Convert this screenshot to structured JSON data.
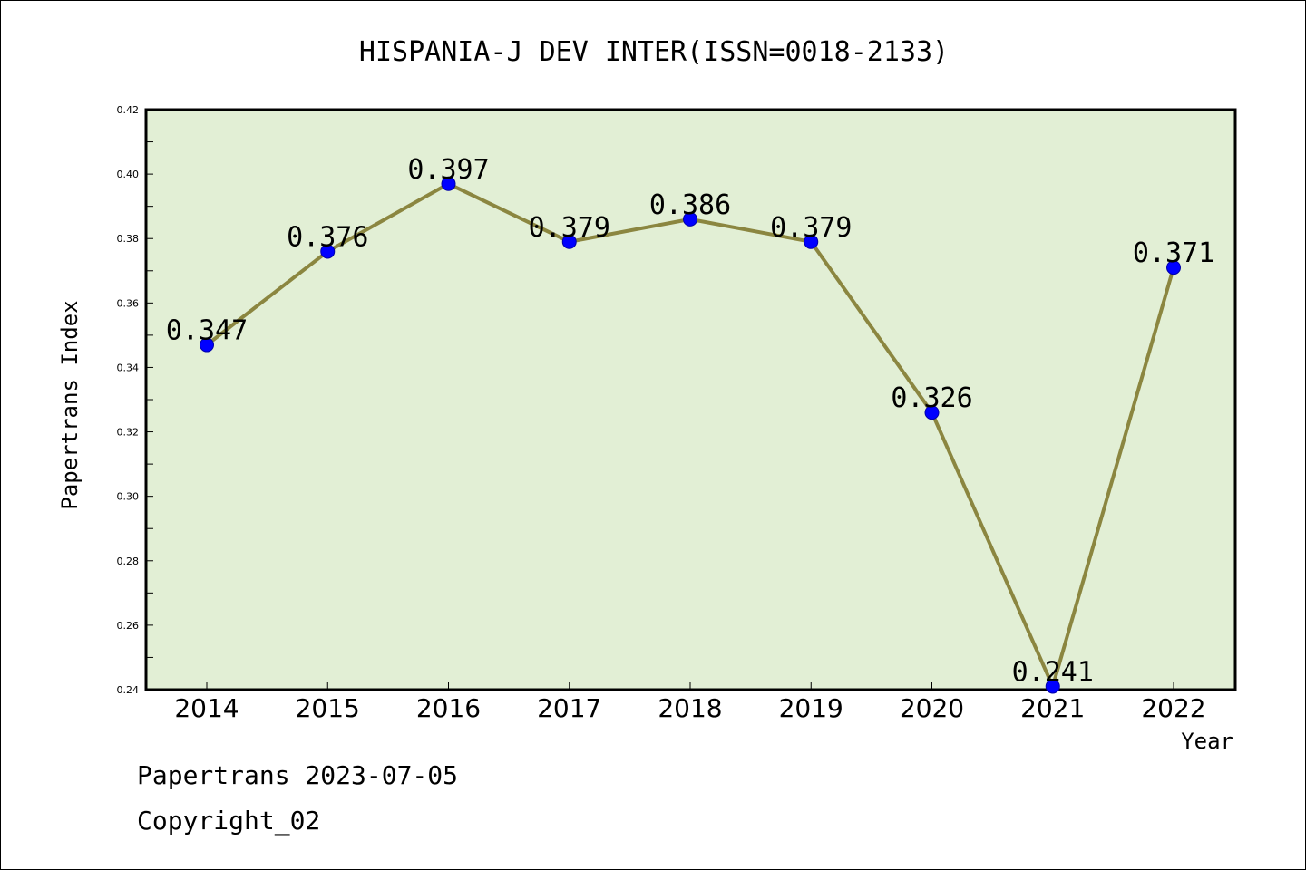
{
  "chart_data": {
    "type": "line",
    "title": "HISPANIA-J DEV INTER(ISSN=0018-2133)",
    "xlabel": "Year",
    "ylabel": "Papertrans Index",
    "categories": [
      "2014",
      "2015",
      "2016",
      "2017",
      "2018",
      "2019",
      "2020",
      "2021",
      "2022"
    ],
    "values": [
      0.347,
      0.376,
      0.397,
      0.379,
      0.386,
      0.379,
      0.326,
      0.241,
      0.371
    ],
    "data_labels": [
      "0.347",
      "0.376",
      "0.397",
      "0.379",
      "0.386",
      "0.379",
      "0.326",
      "0.241",
      "0.371"
    ],
    "ylim": [
      0.24,
      0.42
    ],
    "yticks": [
      0.24,
      0.26,
      0.28,
      0.3,
      0.32,
      0.34,
      0.36,
      0.38,
      0.4,
      0.42
    ],
    "ytick_labels": [
      "0.24",
      "0.26",
      "0.28",
      "0.30",
      "0.32",
      "0.34",
      "0.36",
      "0.38",
      "0.40",
      "0.42"
    ],
    "grid": false,
    "legend": "none",
    "colors": {
      "plot_background": "#e2efd5",
      "line": "#8b8640",
      "marker": "#0000ff"
    }
  },
  "footer": {
    "date_line": "Papertrans 2023-07-05",
    "copyright_line": "Copyright_02"
  }
}
